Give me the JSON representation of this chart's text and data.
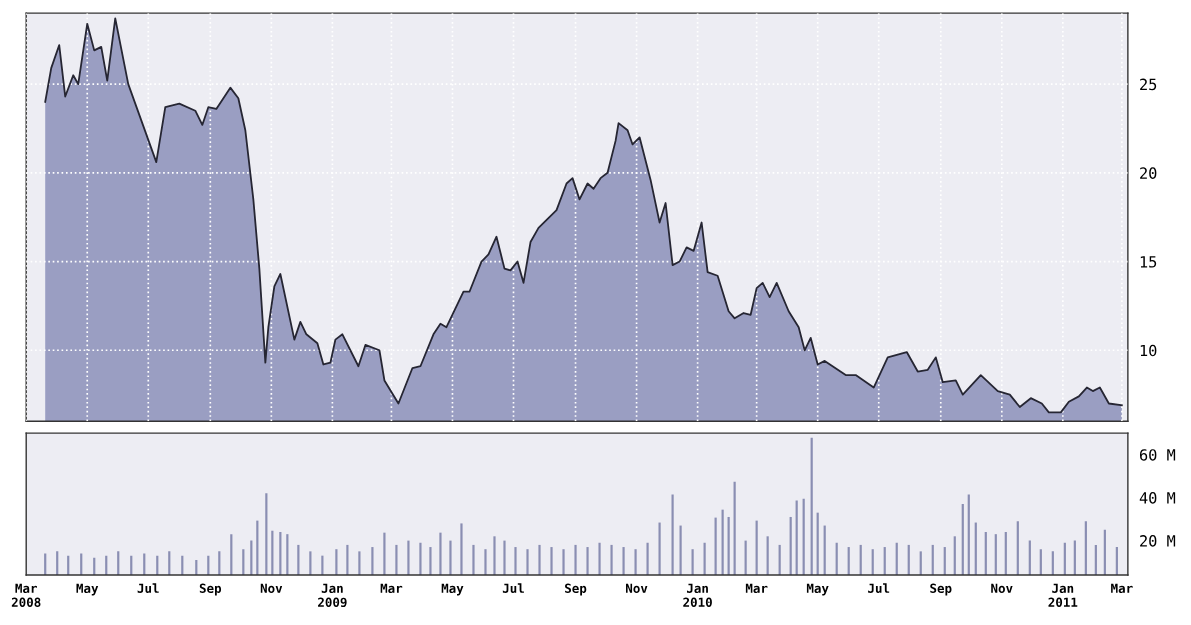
{
  "chart_data": [
    {
      "type": "area",
      "color": "#9a9ec2",
      "grid": true,
      "tick_labels": "y",
      "x": [
        "2008-03-20",
        "2008-03-26",
        "2008-04-03",
        "2008-04-09",
        "2008-04-17",
        "2008-04-22",
        "2008-05-01",
        "2008-05-08",
        "2008-05-15",
        "2008-05-21",
        "2008-05-29",
        "2008-06-11",
        "2008-07-09",
        "2008-07-18",
        "2008-08-01",
        "2008-08-17",
        "2008-08-24",
        "2008-08-30",
        "2008-09-07",
        "2008-09-21",
        "2008-09-29",
        "2008-10-06",
        "2008-10-14",
        "2008-10-20",
        "2008-10-26",
        "2008-10-29",
        "2008-11-04",
        "2008-11-10",
        "2008-11-24",
        "2008-11-30",
        "2008-12-06",
        "2008-12-17",
        "2008-12-23",
        "2008-12-30",
        "2009-01-04",
        "2009-01-11",
        "2009-01-27",
        "2009-02-03",
        "2009-02-17",
        "2009-02-22",
        "2009-03-08",
        "2009-03-22",
        "2009-03-30",
        "2009-04-12",
        "2009-04-19",
        "2009-04-25",
        "2009-05-12",
        "2009-05-18",
        "2009-05-30",
        "2009-06-06",
        "2009-06-14",
        "2009-06-22",
        "2009-06-28",
        "2009-07-05",
        "2009-07-11",
        "2009-07-18",
        "2009-07-26",
        "2009-08-13",
        "2009-08-23",
        "2009-08-29",
        "2009-09-05",
        "2009-09-13",
        "2009-09-19",
        "2009-09-26",
        "2009-10-03",
        "2009-10-11",
        "2009-10-14",
        "2009-10-23",
        "2009-10-28",
        "2009-11-04",
        "2009-11-15",
        "2009-11-24",
        "2009-11-30",
        "2009-12-07",
        "2009-12-14",
        "2009-12-21",
        "2009-12-28",
        "2010-01-05",
        "2010-01-11",
        "2010-01-21",
        "2010-02-01",
        "2010-02-07",
        "2010-02-16",
        "2010-02-23",
        "2010-03-01",
        "2010-03-07",
        "2010-03-14",
        "2010-03-21",
        "2010-04-02",
        "2010-04-12",
        "2010-04-18",
        "2010-04-24",
        "2010-05-01",
        "2010-05-08",
        "2010-05-29",
        "2010-06-08",
        "2010-06-26",
        "2010-07-10",
        "2010-07-29",
        "2010-08-09",
        "2010-08-19",
        "2010-08-27",
        "2010-09-03",
        "2010-09-16",
        "2010-09-23",
        "2010-10-11",
        "2010-10-28",
        "2010-11-09",
        "2010-11-19",
        "2010-11-30",
        "2010-12-11",
        "2010-12-18",
        "2010-12-30",
        "2011-01-07",
        "2011-01-17",
        "2011-01-25",
        "2011-01-31",
        "2011-02-07",
        "2011-02-16",
        "2011-03-01"
      ],
      "values": [
        24.0,
        25.9,
        27.2,
        24.3,
        25.5,
        25.0,
        28.4,
        26.9,
        27.1,
        25.2,
        28.7,
        25.0,
        20.6,
        23.7,
        23.9,
        23.5,
        22.7,
        23.7,
        23.6,
        24.8,
        24.2,
        22.4,
        18.5,
        14.6,
        9.3,
        11.3,
        13.6,
        14.3,
        10.6,
        11.6,
        10.9,
        10.4,
        9.2,
        9.3,
        10.6,
        10.9,
        9.1,
        10.3,
        10.0,
        8.3,
        7.0,
        9.0,
        9.1,
        10.9,
        11.5,
        11.3,
        13.3,
        13.3,
        15.0,
        15.4,
        16.4,
        14.6,
        14.5,
        15.0,
        13.8,
        16.1,
        16.9,
        17.9,
        19.4,
        19.7,
        18.5,
        19.4,
        19.1,
        19.7,
        20.0,
        21.8,
        22.8,
        22.4,
        21.6,
        22.0,
        19.6,
        17.2,
        18.3,
        14.8,
        15.0,
        15.8,
        15.6,
        17.2,
        14.4,
        14.2,
        12.2,
        11.8,
        12.1,
        12.0,
        13.5,
        13.8,
        13.0,
        13.8,
        12.2,
        11.3,
        10.0,
        10.7,
        9.2,
        9.4,
        8.6,
        8.6,
        7.9,
        9.6,
        9.9,
        8.8,
        8.9,
        9.6,
        8.2,
        8.3,
        7.5,
        8.6,
        7.7,
        7.5,
        6.8,
        7.3,
        7.0,
        6.5,
        6.5,
        7.1,
        7.4,
        7.9,
        7.7,
        7.9,
        7.0,
        6.9
      ],
      "xlim": [
        "2008-03-01",
        "2011-03-07"
      ],
      "ylim": [
        6,
        29
      ],
      "yticks": [
        10,
        15,
        20,
        25
      ],
      "xticks": [
        {
          "value": "2008-03-01",
          "label": null
        },
        {
          "value": "2008-05-01",
          "label": null
        },
        {
          "value": "2008-07-01",
          "label": null
        },
        {
          "value": "2008-09-01",
          "label": null
        },
        {
          "value": "2008-11-01",
          "label": null
        },
        {
          "value": "2009-01-01",
          "label": null
        },
        {
          "value": "2009-03-01",
          "label": null
        },
        {
          "value": "2009-05-01",
          "label": null
        },
        {
          "value": "2009-07-01",
          "label": null
        },
        {
          "value": "2009-09-01",
          "label": null
        },
        {
          "value": "2009-11-01",
          "label": null
        },
        {
          "value": "2010-01-01",
          "label": null
        },
        {
          "value": "2010-03-01",
          "label": null
        },
        {
          "value": "2010-05-01",
          "label": null
        },
        {
          "value": "2010-07-01",
          "label": null
        },
        {
          "value": "2010-09-01",
          "label": null
        },
        {
          "value": "2010-11-01",
          "label": null
        },
        {
          "value": "2011-01-01",
          "label": null
        },
        {
          "value": "2011-03-01",
          "label": null
        }
      ]
    },
    {
      "type": "bar",
      "color": "#8a8eb2",
      "x": [
        "2008-03-20",
        "2008-04-01",
        "2008-04-12",
        "2008-04-25",
        "2008-05-08",
        "2008-05-20",
        "2008-06-01",
        "2008-06-14",
        "2008-06-27",
        "2008-07-10",
        "2008-07-22",
        "2008-08-04",
        "2008-08-18",
        "2008-08-30",
        "2008-09-10",
        "2008-09-22",
        "2008-10-04",
        "2008-10-12",
        "2008-10-18",
        "2008-10-27",
        "2008-11-02",
        "2008-11-10",
        "2008-11-17",
        "2008-11-28",
        "2008-12-10",
        "2008-12-22",
        "2009-01-05",
        "2009-01-16",
        "2009-01-28",
        "2009-02-10",
        "2009-02-22",
        "2009-03-06",
        "2009-03-18",
        "2009-03-30",
        "2009-04-09",
        "2009-04-19",
        "2009-04-29",
        "2009-05-10",
        "2009-05-22",
        "2009-06-03",
        "2009-06-12",
        "2009-06-22",
        "2009-07-03",
        "2009-07-15",
        "2009-07-27",
        "2009-08-08",
        "2009-08-20",
        "2009-09-01",
        "2009-09-13",
        "2009-09-25",
        "2009-10-07",
        "2009-10-19",
        "2009-10-31",
        "2009-11-12",
        "2009-11-24",
        "2009-12-07",
        "2009-12-15",
        "2009-12-27",
        "2010-01-08",
        "2010-01-19",
        "2010-01-26",
        "2010-02-01",
        "2010-02-07",
        "2010-02-18",
        "2010-03-01",
        "2010-03-12",
        "2010-03-24",
        "2010-04-04",
        "2010-04-10",
        "2010-04-17",
        "2010-04-25",
        "2010-05-01",
        "2010-05-08",
        "2010-05-20",
        "2010-06-01",
        "2010-06-13",
        "2010-06-25",
        "2010-07-07",
        "2010-07-19",
        "2010-07-31",
        "2010-08-12",
        "2010-08-24",
        "2010-09-05",
        "2010-09-15",
        "2010-09-23",
        "2010-09-29",
        "2010-10-06",
        "2010-10-16",
        "2010-10-26",
        "2010-11-05",
        "2010-11-17",
        "2010-11-29",
        "2010-12-10",
        "2010-12-22",
        "2011-01-03",
        "2011-01-13",
        "2011-01-24",
        "2011-02-03",
        "2011-02-12",
        "2011-02-24"
      ],
      "values": [
        14,
        15,
        13,
        14,
        12,
        13,
        15,
        13,
        14,
        13,
        15,
        13,
        11,
        13,
        15,
        23,
        16,
        20,
        29.3,
        42,
        24.6,
        24,
        23,
        18,
        15,
        13,
        16,
        18,
        15,
        17,
        23.7,
        18,
        20,
        19,
        17,
        23.7,
        20,
        28,
        18,
        16,
        22,
        20,
        17,
        16,
        18,
        17,
        16,
        18,
        17,
        19,
        18,
        17,
        16,
        19,
        28.4,
        41.4,
        27,
        16,
        19,
        30.7,
        34.4,
        31,
        47.4,
        20,
        29.3,
        22,
        18,
        31,
        38.6,
        39.5,
        67.9,
        33,
        27,
        19,
        17,
        18,
        16,
        17,
        19,
        18,
        15,
        18,
        17,
        22,
        37,
        41.4,
        28.4,
        24,
        23,
        24,
        29,
        20,
        16,
        15,
        19,
        20,
        29,
        18,
        25,
        17
      ],
      "xlim": [
        "2008-03-01",
        "2011-03-07"
      ],
      "ylim": [
        4,
        70
      ],
      "yticks": [
        {
          "value": 20,
          "label": "20 M"
        },
        {
          "value": 40,
          "label": "40 M"
        },
        {
          "value": 60,
          "label": "60 M"
        }
      ],
      "xticks": [
        {
          "value": "2008-03-01",
          "label": "Mar\n2008"
        },
        {
          "value": "2008-05-01",
          "label": "May"
        },
        {
          "value": "2008-07-01",
          "label": "Jul"
        },
        {
          "value": "2008-09-01",
          "label": "Sep"
        },
        {
          "value": "2008-11-01",
          "label": "Nov"
        },
        {
          "value": "2009-01-01",
          "label": "Jan\n2009"
        },
        {
          "value": "2009-03-01",
          "label": "Mar"
        },
        {
          "value": "2009-05-01",
          "label": "May"
        },
        {
          "value": "2009-07-01",
          "label": "Jul"
        },
        {
          "value": "2009-09-01",
          "label": "Sep"
        },
        {
          "value": "2009-11-01",
          "label": "Nov"
        },
        {
          "value": "2010-01-01",
          "label": "Jan\n2010"
        },
        {
          "value": "2010-03-01",
          "label": "Mar"
        },
        {
          "value": "2010-05-01",
          "label": "May"
        },
        {
          "value": "2010-07-01",
          "label": "Jul"
        },
        {
          "value": "2010-09-01",
          "label": "Sep"
        },
        {
          "value": "2010-11-01",
          "label": "Nov"
        },
        {
          "value": "2011-01-01",
          "label": "Jan\n2011"
        },
        {
          "value": "2011-03-01",
          "label": "Mar"
        }
      ]
    }
  ]
}
